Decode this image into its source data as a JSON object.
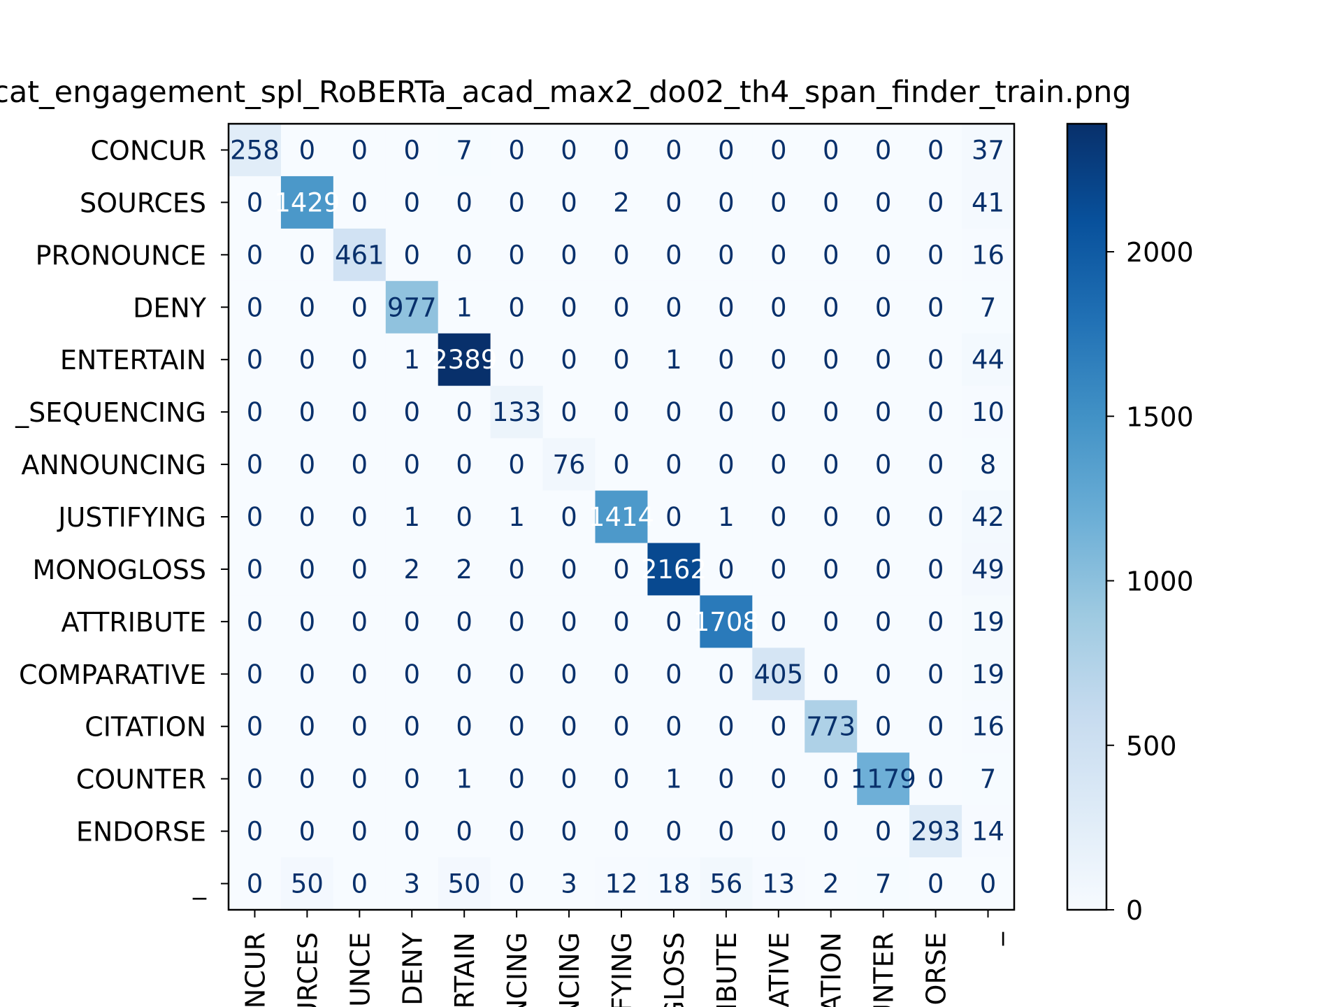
{
  "chart_data": {
    "type": "heatmap",
    "title": "cat_engagement_spl_RoBERTa_acad_max2_do02_th4_span_finder_train.png",
    "xlabel": "",
    "ylabel": "",
    "row_labels": [
      "CONCUR",
      "SOURCES",
      "PRONOUNCE",
      "DENY",
      "ENTERTAIN",
      "_SEQUENCING",
      "ANNOUNCING",
      "JUSTIFYING",
      "MONOGLOSS",
      "ATTRIBUTE",
      "COMPARATIVE",
      "CITATION",
      "COUNTER",
      "ENDORSE",
      "_"
    ],
    "col_labels": [
      "NCUR",
      "URCES",
      "OUNCE",
      "DENY",
      "RTAIN",
      "NCING",
      "NCING",
      "IFYING",
      "GLOSS",
      "IBUTE",
      "RATIVE",
      "ATION",
      "UNTER",
      "ORSE",
      "_"
    ],
    "cell_labels": [
      [
        "258",
        "0",
        "0",
        "0",
        "7",
        "0",
        "0",
        "0",
        "0",
        "0",
        "0",
        "0",
        "0",
        "0",
        "37"
      ],
      [
        "0",
        "1429",
        "0",
        "0",
        "0",
        "0",
        "0",
        "2",
        "0",
        "0",
        "0",
        "0",
        "0",
        "0",
        "41"
      ],
      [
        "0",
        "0",
        "461",
        "0",
        "0",
        "0",
        "0",
        "0",
        "0",
        "0",
        "0",
        "0",
        "0",
        "0",
        "16"
      ],
      [
        "0",
        "0",
        "0",
        "977",
        "1",
        "0",
        "0",
        "0",
        "0",
        "0",
        "0",
        "0",
        "0",
        "0",
        "7"
      ],
      [
        "0",
        "0",
        "0",
        "1",
        "2389",
        "0",
        "0",
        "0",
        "1",
        "0",
        "0",
        "0",
        "0",
        "0",
        "44"
      ],
      [
        "0",
        "0",
        "0",
        "0",
        "0",
        "133",
        "0",
        "0",
        "0",
        "0",
        "0",
        "0",
        "0",
        "0",
        "10"
      ],
      [
        "0",
        "0",
        "0",
        "0",
        "0",
        "0",
        "76",
        "0",
        "0",
        "0",
        "0",
        "0",
        "0",
        "0",
        "8"
      ],
      [
        "0",
        "0",
        "0",
        "1",
        "0",
        "1",
        "0",
        "1414",
        "0",
        "1",
        "0",
        "0",
        "0",
        "0",
        "42"
      ],
      [
        "0",
        "0",
        "0",
        "2",
        "2",
        "0",
        "0",
        "0",
        "2162",
        "0",
        "0",
        "0",
        "0",
        "0",
        "49"
      ],
      [
        "0",
        "0",
        "0",
        "0",
        "0",
        "0",
        "0",
        "0",
        "0",
        "1708",
        "0",
        "0",
        "0",
        "0",
        "19"
      ],
      [
        "0",
        "0",
        "0",
        "0",
        "0",
        "0",
        "0",
        "0",
        "0",
        "0",
        "405",
        "0",
        "0",
        "0",
        "19"
      ],
      [
        "0",
        "0",
        "0",
        "0",
        "0",
        "0",
        "0",
        "0",
        "0",
        "0",
        "0",
        "773",
        "0",
        "0",
        "16"
      ],
      [
        "0",
        "0",
        "0",
        "0",
        "1",
        "0",
        "0",
        "0",
        "1",
        "0",
        "0",
        "0",
        "1179",
        "0",
        "7"
      ],
      [
        "0",
        "0",
        "0",
        "0",
        "0",
        "0",
        "0",
        "0",
        "0",
        "0",
        "0",
        "0",
        "0",
        "293",
        "14"
      ],
      [
        "0",
        "50",
        "0",
        "3",
        "50",
        "0",
        "3",
        "12",
        "18",
        "56",
        "13",
        "2",
        "7",
        "0",
        "0"
      ]
    ],
    "values": [
      [
        258,
        0,
        0,
        0,
        7,
        0,
        0,
        0,
        0,
        0,
        0,
        0,
        0,
        0,
        37
      ],
      [
        0,
        1429,
        0,
        0,
        0,
        0,
        0,
        2,
        0,
        0,
        0,
        0,
        0,
        0,
        41
      ],
      [
        0,
        0,
        461,
        0,
        0,
        0,
        0,
        0,
        0,
        0,
        0,
        0,
        0,
        0,
        16
      ],
      [
        0,
        0,
        0,
        977,
        1,
        0,
        0,
        0,
        0,
        0,
        0,
        0,
        0,
        0,
        7
      ],
      [
        0,
        0,
        0,
        1,
        2389,
        0,
        0,
        0,
        1,
        0,
        0,
        0,
        0,
        0,
        44
      ],
      [
        0,
        0,
        0,
        0,
        0,
        133,
        0,
        0,
        0,
        0,
        0,
        0,
        0,
        0,
        10
      ],
      [
        0,
        0,
        0,
        0,
        0,
        0,
        76,
        0,
        0,
        0,
        0,
        0,
        0,
        0,
        8
      ],
      [
        0,
        0,
        0,
        1,
        0,
        1,
        0,
        1414,
        0,
        1,
        0,
        0,
        0,
        0,
        42
      ],
      [
        0,
        0,
        0,
        2,
        2,
        0,
        0,
        0,
        2162,
        0,
        0,
        0,
        0,
        0,
        49
      ],
      [
        0,
        0,
        0,
        0,
        0,
        0,
        0,
        0,
        0,
        1708,
        0,
        0,
        0,
        0,
        19
      ],
      [
        0,
        0,
        0,
        0,
        0,
        0,
        0,
        0,
        0,
        0,
        405,
        0,
        0,
        0,
        19
      ],
      [
        0,
        0,
        0,
        0,
        0,
        0,
        0,
        0,
        0,
        0,
        0,
        773,
        0,
        0,
        16
      ],
      [
        0,
        0,
        0,
        0,
        1,
        0,
        0,
        0,
        1,
        0,
        0,
        0,
        1179,
        0,
        7
      ],
      [
        0,
        0,
        0,
        0,
        0,
        0,
        0,
        0,
        0,
        0,
        0,
        0,
        0,
        293,
        14
      ],
      [
        0,
        50,
        0,
        3,
        50,
        0,
        3,
        12,
        18,
        56,
        13,
        2,
        7,
        0,
        0
      ]
    ],
    "vmin": 0,
    "vmax": 2389,
    "colormap": "Blues",
    "colormap_stops": [
      "#f7fbff",
      "#deebf7",
      "#c6dbef",
      "#9ecae1",
      "#6baed6",
      "#4292c6",
      "#2171b5",
      "#08519c",
      "#08306b"
    ],
    "colorbar_ticks": [
      0,
      500,
      1000,
      1500,
      2000
    ],
    "colorbar_tick_labels": [
      "0",
      "500",
      "1000",
      "1500",
      "2000"
    ],
    "text_color_dark": "#08306b",
    "text_color_light": "#ffffff"
  }
}
